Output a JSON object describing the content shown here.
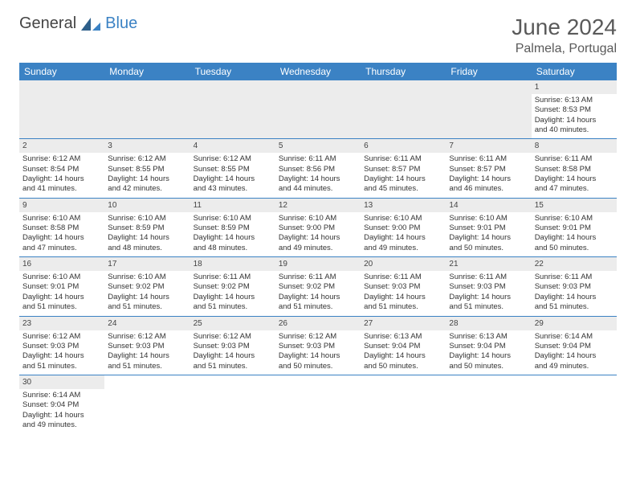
{
  "brand": {
    "part1": "General",
    "part2": "Blue"
  },
  "header": {
    "month": "June 2024",
    "location": "Palmela, Portugal"
  },
  "colors": {
    "header_bg": "#3b82c4",
    "header_text": "#ffffff",
    "gray_bg": "#ececec",
    "text": "#333333"
  },
  "dayNames": [
    "Sunday",
    "Monday",
    "Tuesday",
    "Wednesday",
    "Thursday",
    "Friday",
    "Saturday"
  ],
  "weeks": [
    [
      null,
      null,
      null,
      null,
      null,
      null,
      {
        "n": "1",
        "rise": "6:13 AM",
        "set": "8:53 PM",
        "d1": "14 hours",
        "d2": "and 40 minutes."
      }
    ],
    [
      {
        "n": "2",
        "rise": "6:12 AM",
        "set": "8:54 PM",
        "d1": "14 hours",
        "d2": "and 41 minutes."
      },
      {
        "n": "3",
        "rise": "6:12 AM",
        "set": "8:55 PM",
        "d1": "14 hours",
        "d2": "and 42 minutes."
      },
      {
        "n": "4",
        "rise": "6:12 AM",
        "set": "8:55 PM",
        "d1": "14 hours",
        "d2": "and 43 minutes."
      },
      {
        "n": "5",
        "rise": "6:11 AM",
        "set": "8:56 PM",
        "d1": "14 hours",
        "d2": "and 44 minutes."
      },
      {
        "n": "6",
        "rise": "6:11 AM",
        "set": "8:57 PM",
        "d1": "14 hours",
        "d2": "and 45 minutes."
      },
      {
        "n": "7",
        "rise": "6:11 AM",
        "set": "8:57 PM",
        "d1": "14 hours",
        "d2": "and 46 minutes."
      },
      {
        "n": "8",
        "rise": "6:11 AM",
        "set": "8:58 PM",
        "d1": "14 hours",
        "d2": "and 47 minutes."
      }
    ],
    [
      {
        "n": "9",
        "rise": "6:10 AM",
        "set": "8:58 PM",
        "d1": "14 hours",
        "d2": "and 47 minutes."
      },
      {
        "n": "10",
        "rise": "6:10 AM",
        "set": "8:59 PM",
        "d1": "14 hours",
        "d2": "and 48 minutes."
      },
      {
        "n": "11",
        "rise": "6:10 AM",
        "set": "8:59 PM",
        "d1": "14 hours",
        "d2": "and 48 minutes."
      },
      {
        "n": "12",
        "rise": "6:10 AM",
        "set": "9:00 PM",
        "d1": "14 hours",
        "d2": "and 49 minutes."
      },
      {
        "n": "13",
        "rise": "6:10 AM",
        "set": "9:00 PM",
        "d1": "14 hours",
        "d2": "and 49 minutes."
      },
      {
        "n": "14",
        "rise": "6:10 AM",
        "set": "9:01 PM",
        "d1": "14 hours",
        "d2": "and 50 minutes."
      },
      {
        "n": "15",
        "rise": "6:10 AM",
        "set": "9:01 PM",
        "d1": "14 hours",
        "d2": "and 50 minutes."
      }
    ],
    [
      {
        "n": "16",
        "rise": "6:10 AM",
        "set": "9:01 PM",
        "d1": "14 hours",
        "d2": "and 51 minutes."
      },
      {
        "n": "17",
        "rise": "6:10 AM",
        "set": "9:02 PM",
        "d1": "14 hours",
        "d2": "and 51 minutes."
      },
      {
        "n": "18",
        "rise": "6:11 AM",
        "set": "9:02 PM",
        "d1": "14 hours",
        "d2": "and 51 minutes."
      },
      {
        "n": "19",
        "rise": "6:11 AM",
        "set": "9:02 PM",
        "d1": "14 hours",
        "d2": "and 51 minutes."
      },
      {
        "n": "20",
        "rise": "6:11 AM",
        "set": "9:03 PM",
        "d1": "14 hours",
        "d2": "and 51 minutes."
      },
      {
        "n": "21",
        "rise": "6:11 AM",
        "set": "9:03 PM",
        "d1": "14 hours",
        "d2": "and 51 minutes."
      },
      {
        "n": "22",
        "rise": "6:11 AM",
        "set": "9:03 PM",
        "d1": "14 hours",
        "d2": "and 51 minutes."
      }
    ],
    [
      {
        "n": "23",
        "rise": "6:12 AM",
        "set": "9:03 PM",
        "d1": "14 hours",
        "d2": "and 51 minutes."
      },
      {
        "n": "24",
        "rise": "6:12 AM",
        "set": "9:03 PM",
        "d1": "14 hours",
        "d2": "and 51 minutes."
      },
      {
        "n": "25",
        "rise": "6:12 AM",
        "set": "9:03 PM",
        "d1": "14 hours",
        "d2": "and 51 minutes."
      },
      {
        "n": "26",
        "rise": "6:12 AM",
        "set": "9:03 PM",
        "d1": "14 hours",
        "d2": "and 50 minutes."
      },
      {
        "n": "27",
        "rise": "6:13 AM",
        "set": "9:04 PM",
        "d1": "14 hours",
        "d2": "and 50 minutes."
      },
      {
        "n": "28",
        "rise": "6:13 AM",
        "set": "9:04 PM",
        "d1": "14 hours",
        "d2": "and 50 minutes."
      },
      {
        "n": "29",
        "rise": "6:14 AM",
        "set": "9:04 PM",
        "d1": "14 hours",
        "d2": "and 49 minutes."
      }
    ],
    [
      {
        "n": "30",
        "rise": "6:14 AM",
        "set": "9:04 PM",
        "d1": "14 hours",
        "d2": "and 49 minutes."
      },
      null,
      null,
      null,
      null,
      null,
      null
    ]
  ],
  "labels": {
    "sunrise": "Sunrise:",
    "sunset": "Sunset:",
    "daylight": "Daylight:"
  }
}
